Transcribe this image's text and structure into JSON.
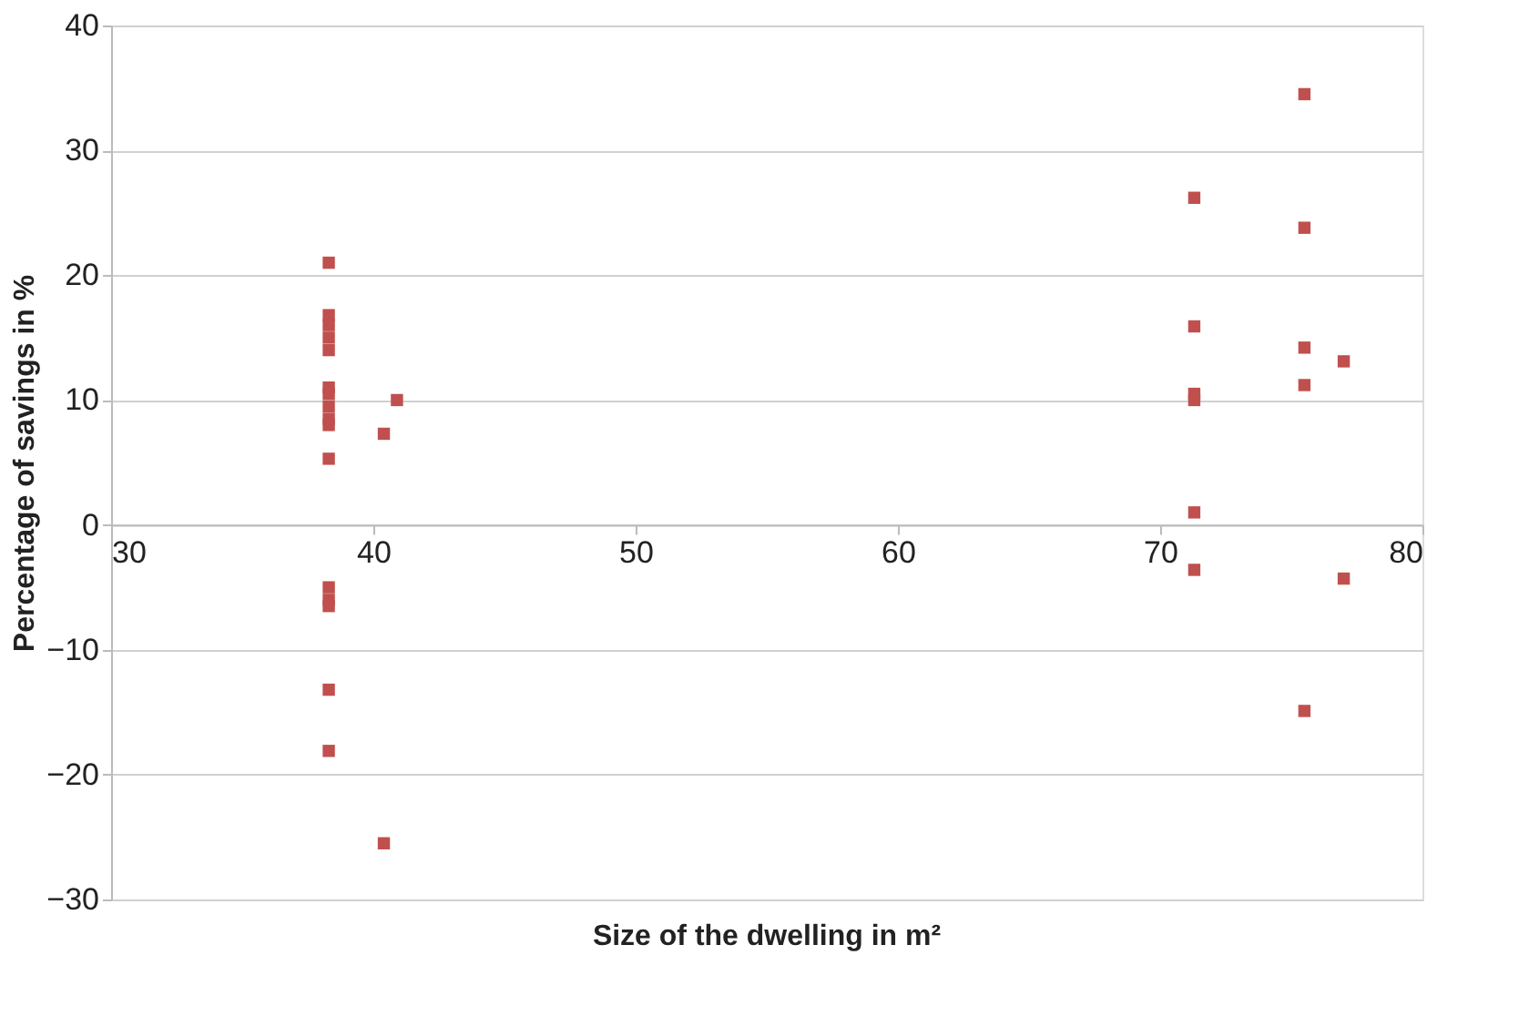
{
  "chart_data": {
    "type": "scatter",
    "xlabel": "Size of the dwelling in m²",
    "ylabel": "Percentage of savings in %",
    "series": [
      {
        "color": "#c0504d",
        "x": [
          38.3,
          38.3,
          38.3,
          38.3,
          38.3,
          38.3,
          38.3,
          38.3,
          38.3,
          38.3,
          38.3,
          38.3,
          38.3,
          38.3,
          38.3,
          38.3,
          40.4,
          40.9,
          40.4,
          71.3,
          71.3,
          71.3,
          71.3,
          71.3,
          71.3,
          75.5,
          75.5,
          75.5,
          75.5,
          75.5,
          77,
          77
        ],
        "values": [
          21,
          16.8,
          16,
          15,
          14,
          11,
          10.5,
          9.5,
          8.5,
          8,
          5.3,
          -5,
          -6,
          -6.5,
          -13.2,
          -18.1,
          7.3,
          10,
          -25.5,
          26.2,
          15.9,
          10.5,
          10,
          1,
          -3.6,
          34.5,
          23.8,
          14.2,
          11.2,
          -14.9,
          13.1,
          -4.3
        ]
      }
    ],
    "xlim": [
      30,
      80
    ],
    "xticks": [
      30,
      40,
      50,
      60,
      70,
      80
    ],
    "ylim": [
      -30,
      40
    ],
    "yticks": [
      -30,
      -20,
      -10,
      0,
      10,
      20,
      30,
      40
    ],
    "grid": "y",
    "marker": "square",
    "legend": false
  }
}
